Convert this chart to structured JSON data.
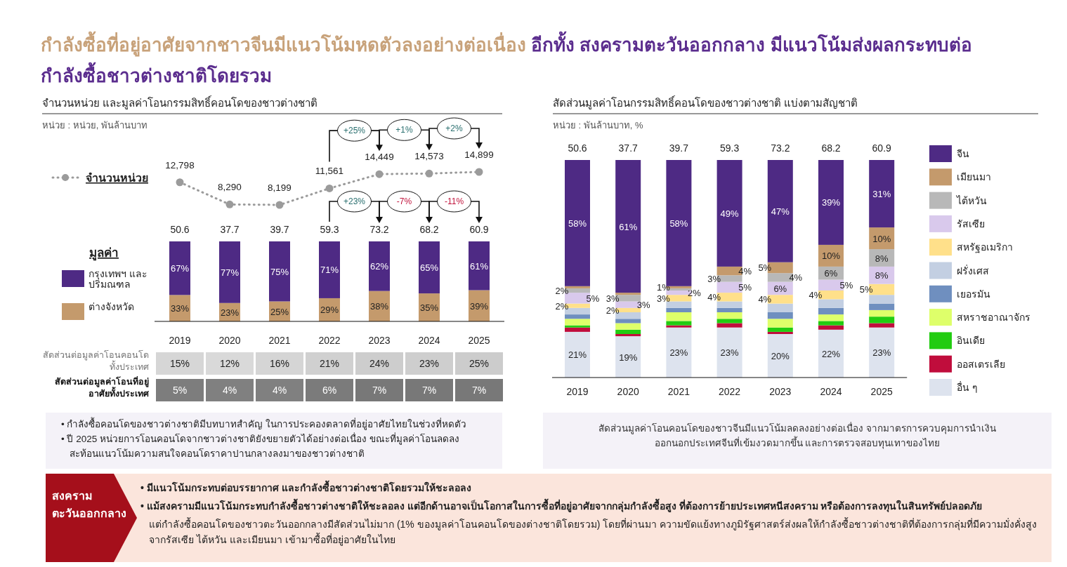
{
  "chart_data": [
    {
      "type": "other",
      "title": "กำลังซื้อที่อยู่อาศัยจากชาวจีนมีแนวโน้มหดตัวลงอย่างต่อเนื่อง",
      "subtitle": "อีกทั้ง สงครามตะวันออกกลาง มีแนวโน้มส่งผลกระทบต่อกำลังซื้อชาวต่างชาติโดยรวม"
    },
    {
      "type": "line",
      "title": "จำนวนหน่วย และมูลค่าโอนกรรมสิทธิ์คอนโดของชาวต่างชาติ",
      "subtitle": "หน่วย : หน่วย, พันล้านบาท",
      "categories": [
        "2019",
        "2020",
        "2021",
        "2022",
        "2023",
        "2024",
        "2025"
      ],
      "tick_labels": false,
      "marker": "circle",
      "line_style": "dotted",
      "legend": "left",
      "series": [
        {
          "name": "จำนวนหน่วย",
          "color": "#9b9b9b",
          "values": [
            12798,
            8290,
            8199,
            11561,
            14449,
            14573,
            14899
          ],
          "value_labels": [
            "12,798",
            "8,290",
            "8,199",
            "11,561",
            "14,449",
            "14,573",
            "14,899"
          ]
        }
      ],
      "annotations": [
        "+25%",
        "+1%",
        "+2%"
      ]
    },
    {
      "type": "bar",
      "stacked": true,
      "categories": [
        "2019",
        "2020",
        "2021",
        "2022",
        "2023",
        "2024",
        "2025"
      ],
      "legend": "left",
      "legend_title": "มูลค่า",
      "series": [
        {
          "name": "ต่างจังหวัด",
          "color": "#c49a6c",
          "values": [
            33,
            23,
            25,
            29,
            38,
            35,
            39
          ],
          "value_labels": [
            "33%",
            "23%",
            "25%",
            "29%",
            "38%",
            "35%",
            "39%"
          ]
        },
        {
          "name": "กรุงเทพฯ และปริมณฑล",
          "color": "#4e2a84",
          "values": [
            67,
            77,
            75,
            71,
            62,
            65,
            61
          ],
          "value_labels": [
            "67%",
            "77%",
            "75%",
            "71%",
            "62%",
            "65%",
            "61%"
          ]
        }
      ],
      "annotations": [
        "+23%",
        "-7%",
        "-11%",
        {
          "text": "50.6",
          "x": "2019",
          "y": 100
        },
        {
          "text": "37.7",
          "x": "2020",
          "y": 100
        },
        {
          "text": "39.7",
          "x": "2021",
          "y": 100
        },
        {
          "text": "59.3",
          "x": "2022",
          "y": 100
        },
        {
          "text": "73.2",
          "x": "2023",
          "y": 100
        },
        {
          "text": "68.2",
          "x": "2024",
          "y": 100
        },
        {
          "text": "60.9",
          "x": "2025",
          "y": 100
        }
      ]
    },
    {
      "type": "heatmap",
      "categories": [
        null,
        null,
        null,
        null,
        null,
        null,
        null
      ],
      "y_categories": [
        "สัดส่วนต่อมูลค่าโอนคอนโดทั้งประเทศ",
        "สัดส่วนต่อมูลค่าโอนที่อยู่อาศัยทั้งประเทศ"
      ],
      "cells": [
        [
          15,
          12,
          16,
          21,
          24,
          23,
          25
        ],
        [
          5,
          4,
          4,
          6,
          7,
          7,
          7
        ]
      ],
      "cell_labels": [
        [
          "15%",
          "12%",
          "16%",
          "21%",
          "24%",
          "23%",
          "25%"
        ],
        [
          "5%",
          "4%",
          "4%",
          "6%",
          "7%",
          "7%",
          "7%"
        ]
      ]
    },
    {
      "type": "other",
      "annotations": [
        "• กำลังซื้อคอนโดของชาวต่างชาติมีบทบาทสำคัญ ในการประคองตลาดที่อยู่อาศัยไทยในช่วงที่หดตัว",
        "• ปี 2025 หน่วยการโอนคอนโดจากชาวต่างชาติยังขยายตัวได้อย่างต่อเนื่อง ขณะที่มูลค่าโอนลดลง",
        "สะท้อนแนวโน้มความสนใจคอนโดราคาปานกลางลงมาของชาวต่างชาติ"
      ]
    },
    {
      "type": "bar",
      "stacked": true,
      "title": "สัดส่วนมูลค่าโอนกรรมสิทธิ์คอนโดของชาวต่างชาติ แบ่งตามสัญชาติ",
      "subtitle": "หน่วย : พันล้านบาท, %",
      "categories": [
        "2019",
        "2020",
        "2021",
        "2022",
        "2023",
        "2024",
        "2025"
      ],
      "legend": "right",
      "series": [
        {
          "name": "อื่น ๆ",
          "color": "#dde3ee",
          "values": [
            21,
            19,
            23,
            23,
            20,
            22,
            23
          ],
          "value_labels": [
            "21%",
            "19%",
            "23%",
            "23%",
            "20%",
            "22%",
            "23%"
          ]
        },
        {
          "name": "ออสเตรเลีย",
          "color": "#c00d3c",
          "values": [
            2,
            1,
            1,
            2,
            1,
            2,
            2
          ]
        },
        {
          "name": "อินเดีย",
          "color": "#22cc11",
          "values": [
            1,
            2,
            2,
            2,
            2,
            2,
            3
          ]
        },
        {
          "name": "สหราชอาณาจักร",
          "color": "#deff6a",
          "values": [
            3,
            3,
            4,
            3,
            4,
            3,
            3
          ]
        },
        {
          "name": "เยอรมัน",
          "color": "#6f8fbf",
          "values": [
            2,
            2,
            2,
            2,
            3,
            3,
            3
          ]
        },
        {
          "name": "ฝรั่งเศส",
          "color": "#c3cfe2",
          "values": [
            3,
            3,
            3,
            3,
            4,
            4,
            4
          ]
        },
        {
          "name": "สหรัฐอเมริกา",
          "color": "#ffe08a",
          "values": [
            2,
            2,
            3,
            4,
            4,
            4,
            5
          ],
          "value_labels": [
            "2%",
            "2%",
            "3%",
            "4%",
            "4%",
            "4%",
            "5%"
          ]
        },
        {
          "name": "รัสเซีย",
          "color": "#d9c9ec",
          "values": [
            5,
            3,
            2,
            5,
            6,
            5,
            8
          ],
          "value_labels": [
            "5%",
            "3%",
            "2%",
            "5%",
            "6%",
            "5%",
            "8%"
          ]
        },
        {
          "name": "ไต้หวัน",
          "color": "#b8b8b8",
          "values": [
            2,
            3,
            1,
            3,
            4,
            6,
            8
          ],
          "value_labels": [
            "2%",
            "3%",
            null,
            "3%",
            "4%",
            "6%",
            "8%"
          ]
        },
        {
          "name": "เมียนมา",
          "color": "#c49a6c",
          "values": [
            1,
            1,
            1,
            4,
            5,
            10,
            10
          ],
          "value_labels": [
            null,
            null,
            "1%",
            "4%",
            "5%",
            "10%",
            "10%"
          ]
        },
        {
          "name": "จีน",
          "color": "#4e2a84",
          "values": [
            58,
            61,
            58,
            49,
            47,
            39,
            31
          ],
          "value_labels": [
            "58%",
            "61%",
            "58%",
            "49%",
            "47%",
            "39%",
            "31%"
          ]
        }
      ],
      "annotations": [
        {
          "text": "50.6",
          "x": "2019",
          "y": 100
        },
        {
          "text": "37.7",
          "x": "2020",
          "y": 100
        },
        {
          "text": "39.7",
          "x": "2021",
          "y": 100
        },
        {
          "text": "59.3",
          "x": "2022",
          "y": 100
        },
        {
          "text": "73.2",
          "x": "2023",
          "y": 100
        },
        {
          "text": "68.2",
          "x": "2024",
          "y": 100
        },
        {
          "text": "60.9",
          "x": "2025",
          "y": 100
        },
        "สัดส่วนมูลค่าโอนคอนโดของชาวจีนมีแนวโน้มลดลงอย่างต่อเนื่อง จากมาตรการควบคุมการนำเงินออกนอกประเทศจีนที่เข้มงวดมากขึ้น และการตรวจสอบทุนเทาของไทย"
      ]
    },
    {
      "type": "other",
      "title": "สงครามตะวันออกกลาง",
      "annotations": [
        "• มีแนวโน้มกระทบต่อบรรยากาศ และกำลังซื้อชาวต่างชาติโดยรวมให้ชะลอลง",
        "• แม้สงครามมีแนวโน้มกระทบกำลังซื้อชาวต่างชาติให้ชะลอลง แต่อีกด้านอาจเป็นโอกาสในการซื้อที่อยู่อาศัยจากกลุ่มกำลังซื้อสูง ที่ต้องการย้ายประเทศหนีสงคราม หรือต้องการลงทุนในสินทรัพย์ปลอดภัย",
        "แต่กำลังซื้อคอนโดของชาวตะวันออกกลางมีสัดส่วนไม่มาก (1% ของมูลค่าโอนคอนโดของต่างชาติโดยรวม) โดยที่ผ่านมา ความขัดแย้งทางภูมิรัฐศาสตร์ส่งผลให้กำลังซื้อชาวต่างชาติที่ต้องการกลุ่มที่มีความมั่งคั่งสูง จากรัสเซีย ไต้หวัน และเมียนมา เข้ามาซื้อที่อยู่อาศัยในไทย"
      ]
    }
  ]
}
